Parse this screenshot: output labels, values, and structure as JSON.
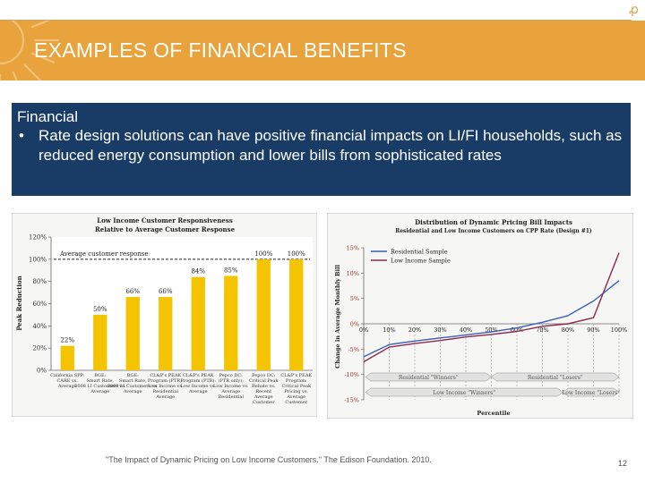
{
  "slide": {
    "title": "EXAMPLES OF FINANCIAL BENEFITS",
    "corner_mark": "ꝓ",
    "heading": "Financial",
    "bullet_marker": "•",
    "bullet_text": "Rate design solutions can have positive financial impacts on LI/FI households, such as reduced energy consumption and lower bills from sophisticated rates",
    "footnote": "\"The Impact of Dynamic Pricing on Low Income Customers.\" The Edison Foundation. 2010.",
    "page_number": "12",
    "colors": {
      "accent": "#e8a33d",
      "navy": "#193c66",
      "bar": "#f5c400"
    }
  },
  "chart_data": [
    {
      "type": "bar",
      "title": "Low Income Customer Responsiveness",
      "subtitle": "Relative to Average Customer Response",
      "ylabel": "Peak Reduction",
      "ylim": [
        0,
        120
      ],
      "yticks": [
        "120%",
        "100%",
        "80%",
        "60%",
        "40%",
        "20%",
        "0%"
      ],
      "reference_line": {
        "value": 100,
        "label": "Average customer response"
      },
      "categories": [
        [
          "California SPP:",
          "CARE vs.",
          "Average"
        ],
        [
          "BGE:",
          "Smart Rate,",
          "2008 LI Customers vs.",
          "Average"
        ],
        [
          "BGE:",
          "Smart Rate,",
          "2009 LI Customers vs.",
          "Average"
        ],
        [
          "CL&P's PEAK",
          "Program (PTR):",
          "Low Income vs.",
          "Residential",
          "Average"
        ],
        [
          "CL&P's PEAK",
          "Program (PTR):",
          "Low Income vs.",
          "Average"
        ],
        [
          "Pepco DC:",
          "(PTR only):",
          "Low Income vs.",
          "Average",
          "Residential"
        ],
        [
          "Pepco DC:",
          "Critical Peak",
          "Rebate vs.",
          "Recent",
          "Average",
          "Customer"
        ],
        [
          "CL&P's PEAK",
          "Program:",
          "Critical Peak",
          "Pricing vs.",
          "Average",
          "Customer"
        ]
      ],
      "values": [
        22,
        50,
        66,
        66,
        84,
        85,
        100,
        100
      ],
      "labels": [
        "22%",
        "50%",
        "66%",
        "66%",
        "84%",
        "85%",
        "100%",
        "100%"
      ]
    },
    {
      "type": "line",
      "title": "Distribution of Dynamic Pricing Bill Impacts",
      "subtitle": "Residential and Low Income Customers on CPP Rate (Design #1)",
      "xlabel": "Percentile",
      "ylabel": "Change in Average Monthly Bill",
      "x": [
        0,
        10,
        20,
        30,
        40,
        50,
        60,
        70,
        80,
        90,
        100
      ],
      "xticks": [
        "0%",
        "10%",
        "20%",
        "30%",
        "40%",
        "50%",
        "60%",
        "70%",
        "80%",
        "90%",
        "100%"
      ],
      "yticks": [
        "15%",
        "10%",
        "5%",
        "0%",
        "-5%",
        "-10%",
        "-15%"
      ],
      "ylim": [
        -15,
        15
      ],
      "series": [
        {
          "name": "Residential Sample",
          "color": "#3d5fb0",
          "values": [
            -6.5,
            -4.1,
            -3.4,
            -2.8,
            -2.2,
            -1.6,
            -0.8,
            0.3,
            1.6,
            4.5,
            8.5
          ]
        },
        {
          "name": "Low Income Sample",
          "color": "#8b2a50",
          "values": [
            -7.5,
            -4.6,
            -3.9,
            -3.3,
            -2.6,
            -2.1,
            -1.5,
            -0.5,
            0.0,
            1.2,
            14.0
          ]
        }
      ],
      "annotations": [
        "Residential \"Winners\"",
        "Residential \"Losers\"",
        "Low Income \"Winners\"",
        "Low Income \"Losers\""
      ]
    }
  ]
}
